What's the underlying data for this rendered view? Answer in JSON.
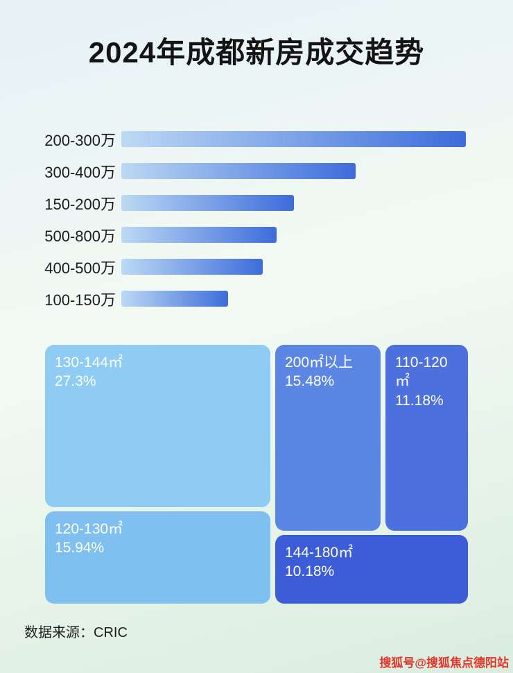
{
  "page": {
    "title": "2024年成都新房成交趋势",
    "source_label": "数据来源：CRIC",
    "watermark": "搜狐号@搜狐焦点德阳站"
  },
  "colors": {
    "bar_gradient_start": "#bcd9f4",
    "bar_gradient_end": "#3d6cdb",
    "watermark_color": "#e03528"
  },
  "chart_data": [
    {
      "type": "bar",
      "title": "2024年成都新房成交趋势",
      "orientation": "horizontal",
      "categories": [
        "200-300万",
        "300-400万",
        "150-200万",
        "500-800万",
        "400-500万",
        "100-150万"
      ],
      "values": [
        100,
        68,
        50,
        45,
        41,
        31
      ],
      "value_unit": "relative-bar-width-percent-of-longest",
      "xlabel": "",
      "ylabel": "",
      "grid": false,
      "legend": false,
      "note": "No numeric axis shown in source image; values estimated from bar lengths relative to longest bar."
    },
    {
      "type": "treemap",
      "items": [
        {
          "label": "130-144㎡",
          "pct": "27.3%",
          "value": 27.3,
          "color": "#8fccf4"
        },
        {
          "label": "200㎡以上",
          "pct": "15.48%",
          "value": 15.48,
          "color": "#5b86e4"
        },
        {
          "label": "110-120㎡",
          "pct": "11.18%",
          "value": 11.18,
          "color": "#4d70df"
        },
        {
          "label": "120-130㎡",
          "pct": "15.94%",
          "value": 15.94,
          "color": "#7fc0f0"
        },
        {
          "label": "144-180㎡",
          "pct": "10.18%",
          "value": 10.18,
          "color": "#3c5cd8"
        }
      ]
    }
  ]
}
